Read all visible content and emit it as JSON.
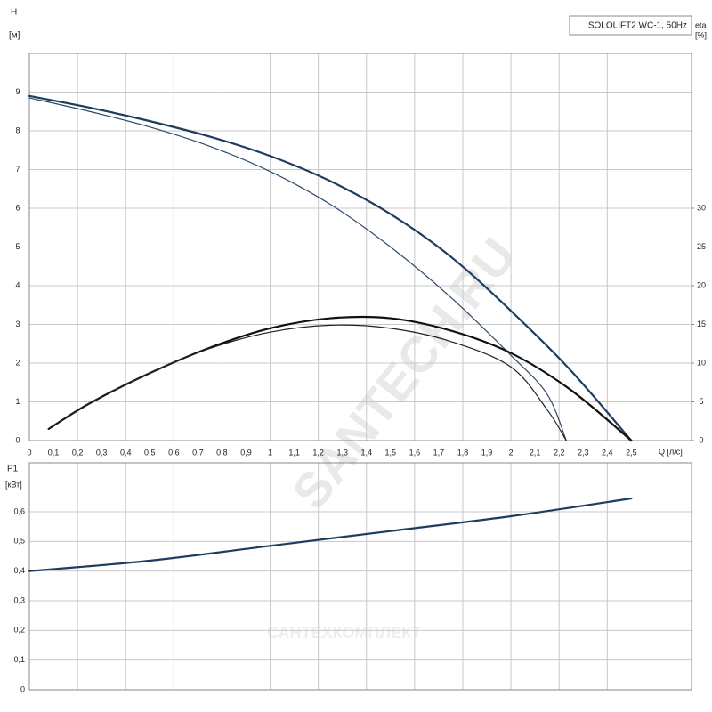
{
  "chart_data": [
    {
      "type": "line",
      "title": "SOLOLIFT2 WC-1, 50Hz",
      "y_label": "H",
      "y_unit": "[м]",
      "y2_label": "eta",
      "y2_unit": "[%]",
      "x_label": "Q [л/с]",
      "watermark": "SANTECH.RU",
      "watermark2": "САНТЕХКОМПЛЕКТ",
      "xlim": [
        0,
        2.75
      ],
      "xticks": [
        0,
        {
          "value": 0.1,
          "label": "0,1"
        },
        {
          "value": 0.2,
          "label": "0,2"
        },
        {
          "value": 0.3,
          "label": "0,3"
        },
        {
          "value": 0.4,
          "label": "0,4"
        },
        {
          "value": 0.5,
          "label": "0,5"
        },
        {
          "value": 0.6,
          "label": "0,6"
        },
        {
          "value": 0.7,
          "label": "0,7"
        },
        {
          "value": 0.8,
          "label": "0,8"
        },
        {
          "value": 0.9,
          "label": "0,9"
        },
        1,
        {
          "value": 1.1,
          "label": "1,1"
        },
        {
          "value": 1.2,
          "label": "1,2"
        },
        {
          "value": 1.3,
          "label": "1,3"
        },
        {
          "value": 1.4,
          "label": "1,4"
        },
        {
          "value": 1.5,
          "label": "1,5"
        },
        {
          "value": 1.6,
          "label": "1,6"
        },
        {
          "value": 1.7,
          "label": "1,7"
        },
        {
          "value": 1.8,
          "label": "1,8"
        },
        {
          "value": 1.9,
          "label": "1,9"
        },
        2,
        {
          "value": 2.1,
          "label": "2,1"
        },
        {
          "value": 2.2,
          "label": "2,2"
        },
        {
          "value": 2.3,
          "label": "2,3"
        },
        {
          "value": 2.4,
          "label": "2,4"
        },
        {
          "value": 2.5,
          "label": "2,5"
        }
      ],
      "ylim": [
        0,
        10
      ],
      "yticks": [
        0,
        1,
        2,
        3,
        4,
        5,
        6,
        7,
        8,
        9
      ],
      "y2lim": [
        0,
        50
      ],
      "y2ticks": [
        0,
        5,
        10,
        15,
        20,
        25,
        30
      ],
      "grid": true,
      "series": [
        {
          "color": "#1d3c5e",
          "width": 2.2,
          "x": [
            0,
            0.25,
            0.5,
            0.75,
            1.0,
            1.25,
            1.5,
            1.75,
            2.0,
            2.25,
            2.5
          ],
          "values": [
            8.9,
            8.6,
            8.25,
            7.85,
            7.35,
            6.7,
            5.85,
            4.75,
            3.35,
            1.8,
            0
          ]
        },
        {
          "color": "#2c4a6b",
          "width": 1.2,
          "x": [
            0,
            0.25,
            0.5,
            0.75,
            1.0,
            1.25,
            1.5,
            1.75,
            2.0,
            2.15,
            2.23
          ],
          "values": [
            8.85,
            8.5,
            8.1,
            7.6,
            6.95,
            6.1,
            5.0,
            3.7,
            2.2,
            1.2,
            0
          ]
        },
        {
          "color": "#111111",
          "width": 2.2,
          "axis": "y2",
          "x": [
            0.08,
            0.25,
            0.5,
            0.75,
            1.0,
            1.25,
            1.5,
            1.75,
            2.0,
            2.25,
            2.5
          ],
          "values": [
            1.5,
            4.8,
            8.7,
            12,
            14.5,
            15.8,
            15.8,
            14.2,
            11.3,
            6.5,
            0
          ]
        },
        {
          "color": "#222222",
          "width": 1.2,
          "axis": "y2",
          "x": [
            0.08,
            0.25,
            0.5,
            0.75,
            1.0,
            1.25,
            1.5,
            1.75,
            2.0,
            2.15,
            2.23
          ],
          "values": [
            1.5,
            4.8,
            8.7,
            11.9,
            14,
            14.9,
            14.5,
            12.8,
            9.5,
            4,
            0
          ]
        }
      ]
    },
    {
      "type": "line",
      "y_label": "P1",
      "y_unit": "[кВт]",
      "xlim": [
        0,
        2.75
      ],
      "ylim": [
        0,
        0.765
      ],
      "yticks": [
        0,
        {
          "value": 0.1,
          "label": "0,1"
        },
        {
          "value": 0.2,
          "label": "0,2"
        },
        {
          "value": 0.3,
          "label": "0,3"
        },
        {
          "value": 0.4,
          "label": "0,4"
        },
        {
          "value": 0.5,
          "label": "0,5"
        },
        {
          "value": 0.6,
          "label": "0,6"
        }
      ],
      "grid": true,
      "series": [
        {
          "color": "#1d3c5e",
          "width": 2.2,
          "x": [
            0,
            0.5,
            1.0,
            1.5,
            2.0,
            2.5
          ],
          "values": [
            0.4,
            0.435,
            0.485,
            0.535,
            0.585,
            0.645
          ]
        }
      ]
    }
  ]
}
